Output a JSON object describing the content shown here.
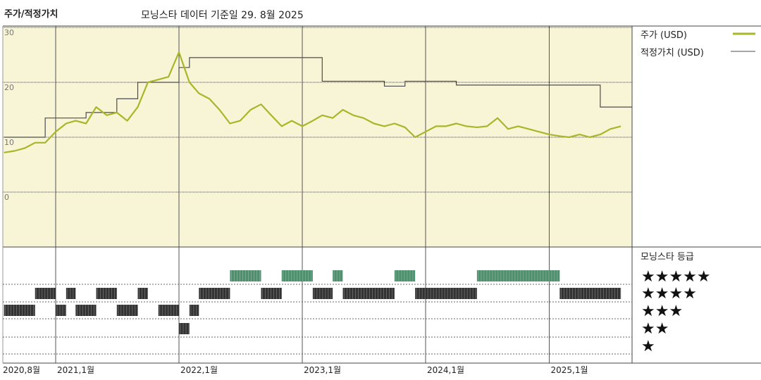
{
  "header": {
    "title": "주가/적정가치",
    "subtitle": "모닝스타 데이터 기준일 29. 8월 2025"
  },
  "legend": {
    "price": "주가 (USD)",
    "fair": "적정가치 (USD)",
    "rating_title": "모닝스타 등급"
  },
  "colors": {
    "price_line": "#a8b629",
    "fair_line": "#4d4d4d",
    "plot_bg": "#f8f4d6",
    "five_star": "#4e8f6e",
    "bars": "#333333"
  },
  "chart_data": {
    "type": "line",
    "title": "주가/적정가치",
    "x_axis_labels": [
      "2020,8월",
      "2021,1월",
      "2022,1월",
      "2023,1월",
      "2024,1월",
      "2025,1월"
    ],
    "y_axis": {
      "ticks": [
        "30",
        "20",
        "10",
        "0"
      ],
      "ylim": [
        -10,
        30
      ]
    },
    "series": [
      {
        "name": "적정가치 (USD)",
        "x": [
          "2020-08",
          "2020-11",
          "2020-12",
          "2021-01",
          "2021-04",
          "2021-07",
          "2021-09",
          "2021-12",
          "2022-01",
          "2022-02",
          "2023-02",
          "2023-03",
          "2023-09",
          "2023-11",
          "2024-04",
          "2024-05",
          "2025-06",
          "2025-08"
        ],
        "values": [
          10,
          10,
          13.5,
          13.5,
          14.5,
          17,
          20,
          20,
          22.7,
          24.5,
          24.5,
          20.2,
          19.3,
          20.2,
          19.5,
          19.5,
          15.5,
          15.5
        ]
      },
      {
        "name": "주가 (USD)",
        "x": [
          "2020-08",
          "2020-09",
          "2020-10",
          "2020-11",
          "2020-12",
          "2021-01",
          "2021-02",
          "2021-03",
          "2021-04",
          "2021-05",
          "2021-06",
          "2021-07",
          "2021-08",
          "2021-09",
          "2021-10",
          "2021-11",
          "2021-12",
          "2022-01",
          "2022-02",
          "2022-03",
          "2022-04",
          "2022-05",
          "2022-06",
          "2022-07",
          "2022-08",
          "2022-09",
          "2022-10",
          "2022-11",
          "2022-12",
          "2023-01",
          "2023-02",
          "2023-03",
          "2023-04",
          "2023-05",
          "2023-06",
          "2023-07",
          "2023-08",
          "2023-09",
          "2023-10",
          "2023-11",
          "2023-12",
          "2024-01",
          "2024-02",
          "2024-03",
          "2024-04",
          "2024-05",
          "2024-06",
          "2024-07",
          "2024-08",
          "2024-09",
          "2024-10",
          "2024-11",
          "2024-12",
          "2025-01",
          "2025-02",
          "2025-03",
          "2025-04",
          "2025-05",
          "2025-06",
          "2025-07",
          "2025-08"
        ],
        "values": [
          7.2,
          7.5,
          8,
          9,
          9,
          11,
          12.5,
          13,
          12.5,
          15.5,
          14,
          14.5,
          13,
          15.5,
          20,
          20.5,
          21,
          25.5,
          20,
          18,
          17,
          15,
          12.5,
          13,
          15,
          16,
          14,
          12,
          13,
          12,
          13,
          14,
          13.5,
          15,
          14,
          13.5,
          12.5,
          12,
          12.5,
          11.8,
          10,
          11,
          12,
          12,
          12.5,
          12,
          11.8,
          12,
          13.5,
          11.5,
          12,
          11.5,
          11,
          10.5,
          10.2,
          10,
          10.5,
          10,
          10.5,
          11.5,
          12
        ]
      }
    ]
  },
  "rating_data": {
    "rows": [
      "★★★★★",
      "★★★★",
      "★★★",
      "★★",
      "★"
    ],
    "segments": [
      {
        "stars": 3,
        "start": "2020-08",
        "end": "2020-11"
      },
      {
        "stars": 4,
        "start": "2020-11",
        "end": "2021-01"
      },
      {
        "stars": 3,
        "start": "2021-01",
        "end": "2021-02"
      },
      {
        "stars": 4,
        "start": "2021-02",
        "end": "2021-03"
      },
      {
        "stars": 3,
        "start": "2021-03",
        "end": "2021-05"
      },
      {
        "stars": 4,
        "start": "2021-05",
        "end": "2021-07"
      },
      {
        "stars": 3,
        "start": "2021-07",
        "end": "2021-09"
      },
      {
        "stars": 4,
        "start": "2021-09",
        "end": "2021-10"
      },
      {
        "stars": 3,
        "start": "2021-11",
        "end": "2022-01"
      },
      {
        "stars": 2,
        "start": "2022-01",
        "end": "2022-02"
      },
      {
        "stars": 3,
        "start": "2022-02",
        "end": "2022-03"
      },
      {
        "stars": 4,
        "start": "2022-03",
        "end": "2022-06"
      },
      {
        "stars": 5,
        "start": "2022-06",
        "end": "2022-09"
      },
      {
        "stars": 4,
        "start": "2022-09",
        "end": "2022-11"
      },
      {
        "stars": 5,
        "start": "2022-11",
        "end": "2023-02"
      },
      {
        "stars": 4,
        "start": "2023-02",
        "end": "2023-04"
      },
      {
        "stars": 5,
        "start": "2023-04",
        "end": "2023-05"
      },
      {
        "stars": 4,
        "start": "2023-05",
        "end": "2023-10"
      },
      {
        "stars": 5,
        "start": "2023-10",
        "end": "2023-12"
      },
      {
        "stars": 4,
        "start": "2023-12",
        "end": "2024-06"
      },
      {
        "stars": 5,
        "start": "2024-06",
        "end": "2025-02"
      },
      {
        "stars": 4,
        "start": "2025-02",
        "end": "2025-04"
      },
      {
        "stars": 4,
        "start": "2025-04",
        "end": "2025-08"
      }
    ]
  }
}
